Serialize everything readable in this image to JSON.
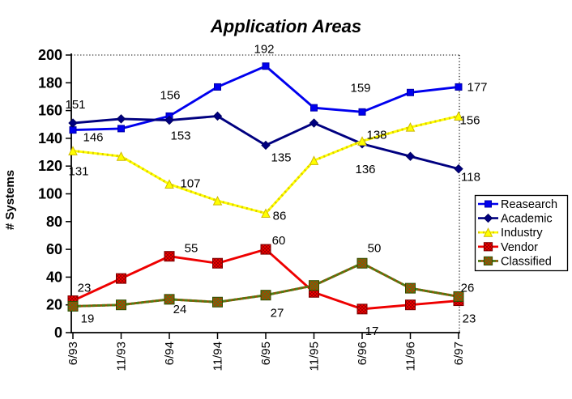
{
  "chart_data": {
    "type": "line",
    "title": "Application Areas",
    "ylabel": "# Systems",
    "xlabel": "",
    "ylim": [
      0,
      200
    ],
    "ytick_interval": 20,
    "grid": "top-and-right-borders-dotted-only",
    "legend_position": "right",
    "categories": [
      "6/93",
      "11/93",
      "6/94",
      "11/94",
      "6/95",
      "11/95",
      "6/96",
      "11/96",
      "6/97"
    ],
    "series": [
      {
        "name": "Reasearch",
        "color": "#0000ee",
        "marker": {
          "shape": "square",
          "size": 8,
          "fill": "#0000ee",
          "stroke": "#0000aa"
        },
        "values": [
          146,
          147,
          156,
          177,
          192,
          162,
          159,
          173,
          177
        ],
        "labels": [
          {
            "index": 0,
            "text": "146",
            "dx": 25,
            "dy": 9
          },
          {
            "index": 2,
            "text": "156",
            "dx": 1,
            "dy": -26
          },
          {
            "index": 4,
            "text": "192",
            "dx": -2,
            "dy": -21
          },
          {
            "index": 6,
            "text": "159",
            "dx": -2,
            "dy": -30
          },
          {
            "index": 8,
            "text": "177",
            "dx": 23,
            "dy": 0
          }
        ]
      },
      {
        "name": "Academic",
        "color": "#000080",
        "marker": {
          "shape": "diamond",
          "size": 10,
          "fill": "#000080",
          "stroke": "#000060"
        },
        "values": [
          151,
          154,
          153,
          156,
          135,
          151,
          136,
          127,
          118
        ],
        "labels": [
          {
            "index": 0,
            "text": "151",
            "dx": 3,
            "dy": -23
          },
          {
            "index": 2,
            "text": "153",
            "dx": 14,
            "dy": 19
          },
          {
            "index": 4,
            "text": "135",
            "dx": 19,
            "dy": 15
          },
          {
            "index": 6,
            "text": "136",
            "dx": 4,
            "dy": 31
          },
          {
            "index": 8,
            "text": "118",
            "dx": 15,
            "dy": 10
          }
        ]
      },
      {
        "name": "Industry",
        "color": "#ffff00",
        "line_overlay": {
          "color": "#d9c900",
          "dash": "2 4"
        },
        "marker": {
          "shape": "triangle",
          "size": 10,
          "fill": "#ffff00",
          "stroke": "#cdb800"
        },
        "values": [
          131,
          127,
          107,
          95,
          86,
          124,
          138,
          148,
          156
        ],
        "labels": [
          {
            "index": 0,
            "text": "131",
            "dx": 7,
            "dy": 25
          },
          {
            "index": 2,
            "text": "107",
            "dx": 26,
            "dy": -1
          },
          {
            "index": 4,
            "text": "86",
            "dx": 17,
            "dy": 3
          },
          {
            "index": 6,
            "text": "138",
            "dx": 18,
            "dy": -8
          },
          {
            "index": 8,
            "text": "156",
            "dx": 14,
            "dy": 5
          }
        ]
      },
      {
        "name": "Vendor",
        "color": "#ee0000",
        "marker": {
          "shape": "square",
          "size": 12,
          "pattern": "vendor",
          "stroke": "#7a0000"
        },
        "values": [
          23,
          39,
          55,
          50,
          60,
          29,
          17,
          20,
          23
        ],
        "labels": [
          {
            "index": 0,
            "text": "23",
            "dx": 14,
            "dy": -16
          },
          {
            "index": 2,
            "text": "55",
            "dx": 27,
            "dy": -10
          },
          {
            "index": 4,
            "text": "60",
            "dx": 16,
            "dy": -11
          },
          {
            "index": 6,
            "text": "17",
            "dx": 12,
            "dy": 27
          },
          {
            "index": 8,
            "text": "23",
            "dx": 13,
            "dy": 22
          }
        ]
      },
      {
        "name": "Classified",
        "color": "#9c4a00",
        "line_overlay": {
          "color": "#4e7d16",
          "dash": "4 2"
        },
        "marker": {
          "shape": "square",
          "size": 12,
          "pattern": "classified",
          "stroke": "#2f4f00"
        },
        "values": [
          19,
          20,
          24,
          22,
          27,
          34,
          50,
          32,
          26
        ],
        "labels": [
          {
            "index": 0,
            "text": "19",
            "dx": 18,
            "dy": 15
          },
          {
            "index": 2,
            "text": "24",
            "dx": 13,
            "dy": 12
          },
          {
            "index": 4,
            "text": "27",
            "dx": 14,
            "dy": 22
          },
          {
            "index": 6,
            "text": "50",
            "dx": 15,
            "dy": -19
          },
          {
            "index": 8,
            "text": "26",
            "dx": 11,
            "dy": -11
          }
        ]
      }
    ]
  }
}
